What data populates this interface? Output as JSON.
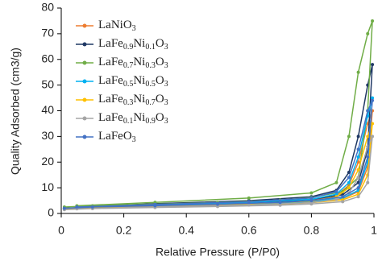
{
  "chart_data": {
    "type": "line",
    "x_label": "Relative Pressure (P/P0)",
    "y_label": "Quality Adsorbed (cm3/g)",
    "x": [
      0.01,
      0.1,
      0.3,
      0.5,
      0.7,
      0.8,
      0.9,
      0.95,
      0.98,
      0.995,
      0.98,
      0.95,
      0.92,
      0.88,
      0.8,
      0.6,
      0.3,
      0.05
    ],
    "series": [
      {
        "name": "LaNiO3",
        "color": "#ed7d31",
        "values": [
          2,
          2.4,
          2.9,
          3.3,
          3.9,
          4.5,
          5.8,
          8.5,
          18,
          40,
          35,
          20,
          11,
          7,
          5,
          4,
          3.1,
          2.3
        ]
      },
      {
        "name": "LaFe0.9Ni0.1O3",
        "color": "#1f3864",
        "values": [
          2,
          2.6,
          3.2,
          3.8,
          4.6,
          5.5,
          7.3,
          12,
          25,
          58,
          50,
          30,
          16,
          9,
          6.5,
          5,
          3.8,
          2.6
        ]
      },
      {
        "name": "LaFe0.7Ni0.3O3",
        "color": "#70ad47",
        "values": [
          2.5,
          3,
          3.6,
          4.3,
          5.2,
          6.2,
          8.5,
          14,
          40,
          75,
          70,
          55,
          30,
          12,
          8,
          6,
          4.3,
          3
        ]
      },
      {
        "name": "LaFe0.5Ni0.5O3",
        "color": "#00b0f0",
        "values": [
          1.8,
          2.3,
          2.8,
          3.3,
          4,
          4.7,
          6,
          9,
          20,
          45,
          38,
          22,
          12,
          7.5,
          5.5,
          4.3,
          3.3,
          2.3
        ]
      },
      {
        "name": "LaFe0.3Ni0.7O3",
        "color": "#ffc000",
        "values": [
          1.8,
          2.2,
          2.6,
          3,
          3.6,
          4.2,
          5.3,
          7.5,
          15,
          35,
          30,
          17,
          10,
          6.5,
          4.8,
          3.8,
          2.9,
          2
        ]
      },
      {
        "name": "LaFe0.1Ni0.9O3",
        "color": "#a5a5a5",
        "values": [
          1.5,
          1.9,
          2.3,
          2.7,
          3.2,
          3.7,
          4.6,
          6.5,
          12,
          30,
          26,
          14,
          8,
          5.5,
          4.2,
          3.3,
          2.5,
          1.8
        ]
      },
      {
        "name": "LaFeO3",
        "color": "#4472c4",
        "values": [
          2,
          2.5,
          3,
          3.6,
          4.3,
          5,
          6.5,
          10,
          22,
          44,
          40,
          25,
          14,
          8.5,
          6,
          4.6,
          3.5,
          2.5
        ]
      }
    ],
    "xlim": [
      0,
      1
    ],
    "xticks": [
      0,
      0.2,
      0.4,
      0.6,
      0.8,
      1
    ],
    "ylim": [
      0,
      80
    ],
    "yticks": [
      0,
      10,
      20,
      30,
      40,
      50,
      60,
      70,
      80
    ],
    "grid": false,
    "legend": "upper left"
  }
}
